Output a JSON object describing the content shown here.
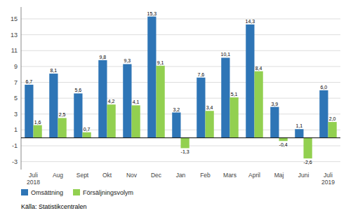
{
  "chart_data": {
    "type": "bar",
    "categories": [
      "Juli\n2018",
      "Aug",
      "Sept",
      "Okt",
      "Nov",
      "Dec",
      "Jan",
      "Feb",
      "Mars",
      "April",
      "Maj",
      "Juni",
      "Juli\n2019"
    ],
    "series": [
      {
        "name": "Omsättning",
        "color": "#2E75B6",
        "values": [
          6.7,
          8.1,
          5.6,
          9.8,
          9.3,
          15.3,
          3.2,
          7.6,
          10.1,
          14.3,
          3.9,
          1.1,
          6.0
        ],
        "value_labels": [
          "6,7",
          "8,1",
          "5,6",
          "9,8",
          "9,3",
          "15,3",
          "3,2",
          "7,6",
          "10,1",
          "14,3",
          "3,9",
          "1,1",
          "6,0"
        ]
      },
      {
        "name": "Försäljningsvolym",
        "color": "#92D050",
        "values": [
          1.6,
          2.5,
          0.7,
          4.2,
          4.1,
          9.1,
          -1.3,
          3.4,
          5.1,
          8.4,
          -0.4,
          -2.6,
          2.0
        ],
        "value_labels": [
          "1,6",
          "2,5",
          "0,7",
          "4,2",
          "4,1",
          "9,1",
          "-1,3",
          "3,4",
          "5,1",
          "8,4",
          "-0,4",
          "-2,6",
          "2,0"
        ]
      }
    ],
    "ylim": [
      -4,
      16.5
    ],
    "yticks": [
      -3,
      -1,
      1,
      3,
      5,
      7,
      9,
      11,
      13,
      15
    ],
    "grid": true,
    "data_labels": true,
    "legend": "bottom left",
    "annotations": [
      "Källa: Statistikcentralen"
    ]
  }
}
